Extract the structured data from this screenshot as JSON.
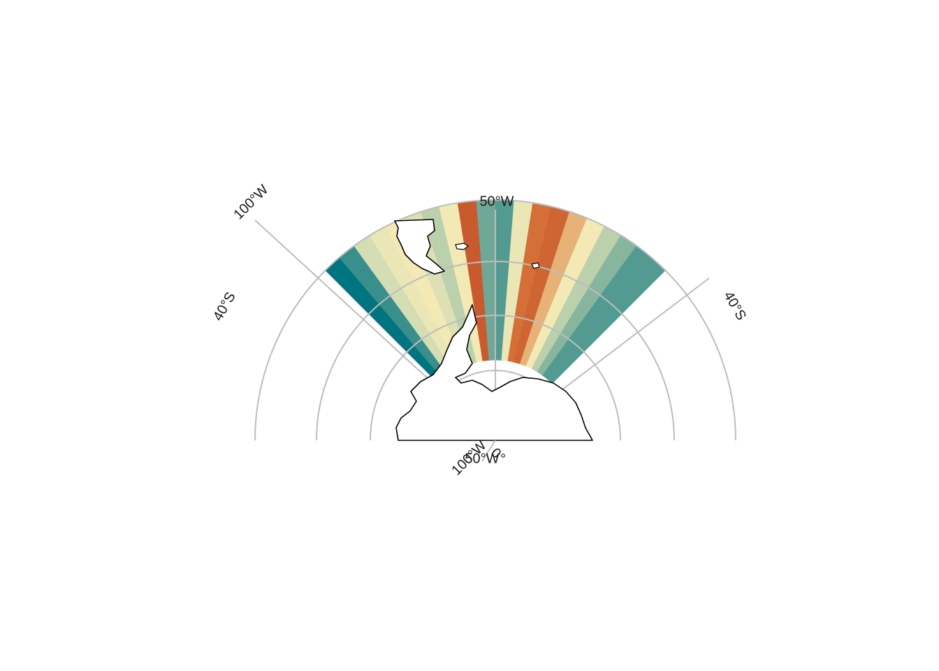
{
  "map": {
    "projection": "south-polar-stereographic",
    "labels": {
      "lon_left_top": "100°W",
      "lon_center_top": "50°W",
      "lat_left": "40°S",
      "lat_right": "40°S",
      "bottom_lon_a": "100°W",
      "bottom_lon_b": "50°W",
      "bottom_lon_c": "0°"
    },
    "colors": {
      "grid": "#bdbdbd",
      "coastline": "#000000",
      "palette": [
        "#00757f",
        "#6fa897",
        "#d4ddb3",
        "#f3e9b5",
        "#d97a3b",
        "#c44f2a"
      ]
    },
    "field": {
      "lon_range": [
        "-100",
        "0"
      ],
      "lat_range": [
        "-65",
        "-40"
      ],
      "longitudes": [
        -100,
        -95,
        -90,
        -85,
        -80,
        -75,
        -70,
        -65,
        -60,
        -55,
        -50,
        -45,
        -40,
        -35,
        -30,
        -25,
        -20,
        -15,
        -10,
        -5
      ],
      "levels": [
        0.0,
        0.1,
        0.4,
        0.55,
        0.6,
        0.45,
        0.35,
        0.6,
        0.95,
        0.2,
        0.15,
        0.55,
        0.85,
        0.9,
        0.7,
        0.6,
        0.35,
        0.25,
        0.15,
        0.15
      ]
    }
  }
}
